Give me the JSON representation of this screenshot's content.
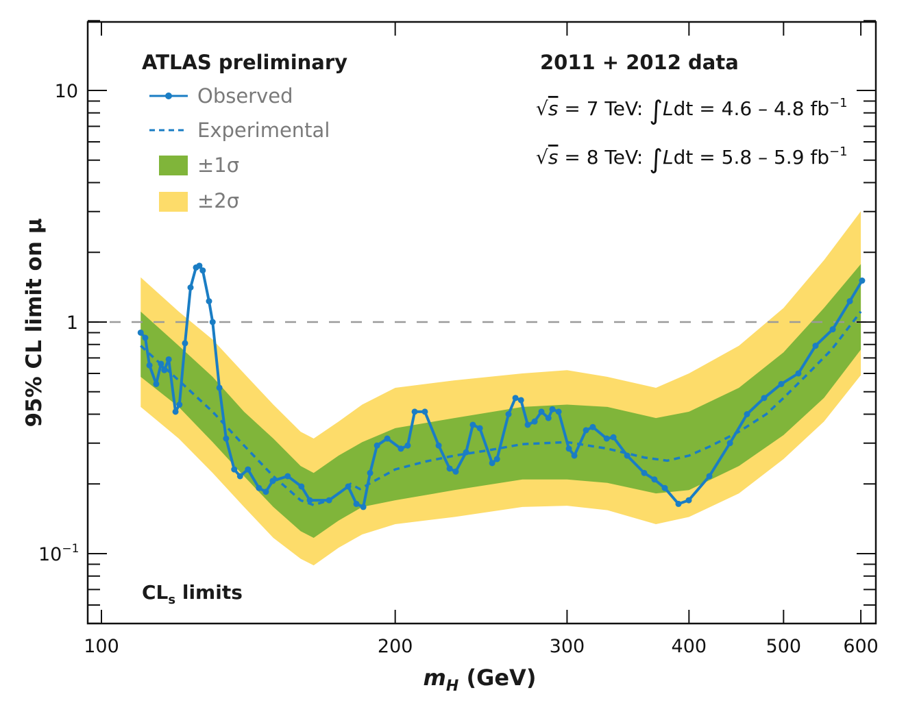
{
  "chart_data": {
    "type": "line",
    "title": "",
    "xlabel": "m_H (GeV)",
    "xlabel_main": "m",
    "xlabel_sub": "H",
    "xlabel_unit": " (GeV)",
    "ylabel": "95% CL limit on μ",
    "xscale": "log",
    "yscale": "log",
    "xlim": [
      96,
      620
    ],
    "ylim": [
      0.05,
      20
    ],
    "x_ticks": [
      100,
      200,
      300,
      400,
      500,
      600
    ],
    "x_tick_labels": [
      "100",
      "200",
      "300",
      "400",
      "500",
      "600"
    ],
    "y_ticks": [
      {
        "value": 0.1,
        "base": "10",
        "exp": "−1"
      },
      {
        "value": 1,
        "base": "1",
        "exp": ""
      },
      {
        "value": 10,
        "base": "10",
        "exp": ""
      }
    ],
    "reference_line": {
      "value": 1,
      "style": "dashed",
      "color": "#9a9a9a"
    },
    "colors": {
      "observed": "#1a7dc4",
      "expected": "#1a7dc4",
      "band1": "#80b53a",
      "band2": "#fddc6a",
      "axis": "#111111"
    },
    "legend": {
      "placement": "top-left",
      "title": "ATLAS preliminary",
      "entries": [
        "Observed",
        "Experimental",
        "±1σ",
        "±2σ"
      ]
    },
    "annotations": {
      "dataset": "2011 + 2012 data",
      "lumi": [
        {
          "sqrt": "√",
          "s": "s",
          "energy": " = 7 TeV: ",
          "integral": "∫",
          "L": "L",
          "dt": "dt",
          "value": " = 4.6 – 4.8 fb",
          "exp": "−1"
        },
        {
          "sqrt": "√",
          "s": "s",
          "energy": " = 8 TeV: ",
          "integral": "∫",
          "L": "L",
          "dt": "dt",
          "value": " = 5.8 – 5.9 fb",
          "exp": "−1"
        }
      ],
      "method_main": "CL",
      "method_sub": "s",
      "method_rest": " limits"
    },
    "bands": {
      "x": [
        109.7,
        120,
        130,
        140,
        150,
        160,
        165,
        175,
        185,
        200,
        230,
        270,
        300,
        330,
        370,
        400,
        450,
        500,
        550,
        600
      ],
      "expected": [
        0.79,
        0.56,
        0.41,
        0.293,
        0.216,
        0.17,
        0.161,
        0.182,
        0.209,
        0.231,
        0.265,
        0.297,
        0.303,
        0.284,
        0.252,
        0.265,
        0.336,
        0.47,
        0.71,
        1.11
      ],
      "minus1": [
        0.58,
        0.43,
        0.303,
        0.216,
        0.159,
        0.125,
        0.117,
        0.139,
        0.159,
        0.17,
        0.188,
        0.209,
        0.209,
        0.202,
        0.182,
        0.188,
        0.239,
        0.325,
        0.47,
        0.76
      ],
      "plus1": [
        1.11,
        0.79,
        0.58,
        0.41,
        0.314,
        0.239,
        0.223,
        0.265,
        0.303,
        0.348,
        0.385,
        0.43,
        0.44,
        0.43,
        0.385,
        0.41,
        0.52,
        0.74,
        1.15,
        1.78
      ],
      "minus2": [
        0.43,
        0.314,
        0.223,
        0.159,
        0.117,
        0.095,
        0.089,
        0.106,
        0.121,
        0.134,
        0.144,
        0.159,
        0.161,
        0.154,
        0.134,
        0.144,
        0.182,
        0.256,
        0.372,
        0.59
      ],
      "plus2": [
        1.56,
        1.11,
        0.84,
        0.6,
        0.44,
        0.336,
        0.314,
        0.372,
        0.44,
        0.52,
        0.56,
        0.6,
        0.62,
        0.58,
        0.52,
        0.6,
        0.79,
        1.15,
        1.85,
        3.01
      ]
    },
    "series": [
      {
        "name": "Observed",
        "x": [
          109.7,
          110.9,
          112.0,
          113.8,
          115.1,
          116.0,
          117.2,
          119.1,
          120.2,
          121.8,
          123.4,
          125.0,
          126.0,
          127.0,
          128.9,
          130.0,
          132.1,
          134.2,
          136.8,
          138.7,
          141.3,
          145.0,
          147.4,
          149.8,
          155.2,
          160.3,
          163.5,
          171.1,
          179.0,
          182.5,
          185.5,
          188.5,
          191.6,
          196.3,
          202.7,
          206.0,
          209.4,
          214.5,
          221.6,
          227.4,
          230.7,
          236.4,
          240.2,
          244.2,
          251.4,
          254.3,
          261.3,
          265.6,
          269.1,
          273.4,
          277.9,
          282.4,
          287.1,
          289.8,
          294.1,
          301.3,
          305.2,
          313.7,
          318.8,
          329.4,
          334.7,
          345.7,
          359.9,
          368.7,
          377.8,
          390.2,
          399.8,
          419.7,
          440.6,
          458.7,
          477.6,
          497.3,
          517.8,
          539.2,
          561.5,
          584.6,
          601.8
        ],
        "y": [
          0.9,
          0.855,
          0.65,
          0.54,
          0.66,
          0.62,
          0.69,
          0.41,
          0.44,
          0.81,
          1.41,
          1.72,
          1.75,
          1.67,
          1.23,
          1.0,
          0.52,
          0.314,
          0.231,
          0.216,
          0.231,
          0.192,
          0.185,
          0.206,
          0.216,
          0.195,
          0.17,
          0.17,
          0.195,
          0.164,
          0.159,
          0.223,
          0.293,
          0.314,
          0.284,
          0.293,
          0.41,
          0.41,
          0.293,
          0.233,
          0.226,
          0.274,
          0.36,
          0.348,
          0.246,
          0.256,
          0.4,
          0.47,
          0.46,
          0.36,
          0.372,
          0.41,
          0.385,
          0.42,
          0.41,
          0.284,
          0.265,
          0.341,
          0.352,
          0.314,
          0.318,
          0.265,
          0.223,
          0.209,
          0.192,
          0.164,
          0.17,
          0.216,
          0.3,
          0.4,
          0.47,
          0.54,
          0.6,
          0.79,
          0.93,
          1.23,
          1.51
        ]
      },
      {
        "name": "Experimental",
        "x": [
          109.7,
          120,
          130,
          140,
          150,
          160,
          165,
          171,
          176,
          180,
          184,
          188,
          200,
          215,
          230,
          250,
          270,
          300,
          330,
          360,
          380,
          400,
          420,
          450,
          480,
          500,
          530,
          560,
          600
        ],
        "y": [
          0.79,
          0.56,
          0.41,
          0.293,
          0.216,
          0.17,
          0.162,
          0.17,
          0.185,
          0.2,
          0.19,
          0.2,
          0.231,
          0.25,
          0.265,
          0.28,
          0.297,
          0.303,
          0.284,
          0.26,
          0.252,
          0.265,
          0.29,
          0.336,
          0.4,
          0.47,
          0.6,
          0.76,
          1.11
        ]
      }
    ]
  }
}
